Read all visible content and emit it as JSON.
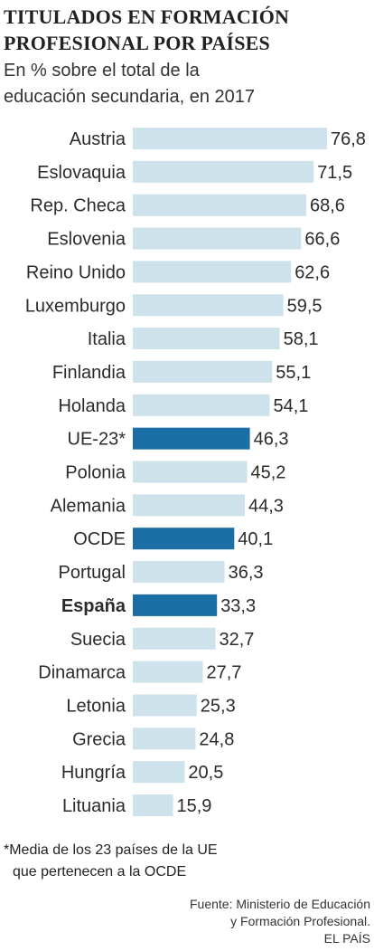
{
  "title_lines": [
    "TITULADOS EN FORMACIÓN",
    "PROFESIONAL POR PAÍSES"
  ],
  "subtitle_lines": [
    "En % sobre el total de la",
    "educación secundaria, en 2017"
  ],
  "footnote_lines": [
    "*Media de los 23 países de la UE",
    "que pertenecen a la OCDE"
  ],
  "source_lines": [
    "Fuente: Ministerio de Educación",
    "y Formación Profesional.",
    "EL PAÍS"
  ],
  "colors": {
    "bar": "#cde2ea",
    "highlight": "#1c6ea6",
    "text": "#2b2b2b"
  },
  "chart_data": {
    "type": "bar",
    "orientation": "horizontal",
    "title": "TITULADOS EN FORMACIÓN PROFESIONAL POR PAÍSES",
    "subtitle": "En % sobre el total de la educación secundaria, en 2017",
    "categories": [
      "Austria",
      "Eslovaquia",
      "Rep. Checa",
      "Eslovenia",
      "Reino Unido",
      "Luxemburgo",
      "Italia",
      "Finlandia",
      "Holanda",
      "UE-23*",
      "Polonia",
      "Alemania",
      "OCDE",
      "Portugal",
      "España",
      "Suecia",
      "Dinamarca",
      "Letonia",
      "Grecia",
      "Hungría",
      "Lituania"
    ],
    "values": [
      76.8,
      71.5,
      68.6,
      66.6,
      62.6,
      59.5,
      58.1,
      55.1,
      54.1,
      46.3,
      45.2,
      44.3,
      40.1,
      36.3,
      33.3,
      32.7,
      27.7,
      25.3,
      24.8,
      20.5,
      15.9
    ],
    "value_labels": [
      "76,8",
      "71,5",
      "68,6",
      "66,6",
      "62,6",
      "59,5",
      "58,1",
      "55,1",
      "54,1",
      "46,3",
      "45,2",
      "44,3",
      "40,1",
      "36,3",
      "33,3",
      "32,7",
      "27,7",
      "25,3",
      "24,8",
      "20,5",
      "15,9"
    ],
    "highlighted": [
      "UE-23*",
      "OCDE",
      "España"
    ],
    "bold_labels": [
      "España"
    ],
    "xlim": [
      0,
      76.8
    ],
    "grid": false,
    "legend": "none"
  }
}
